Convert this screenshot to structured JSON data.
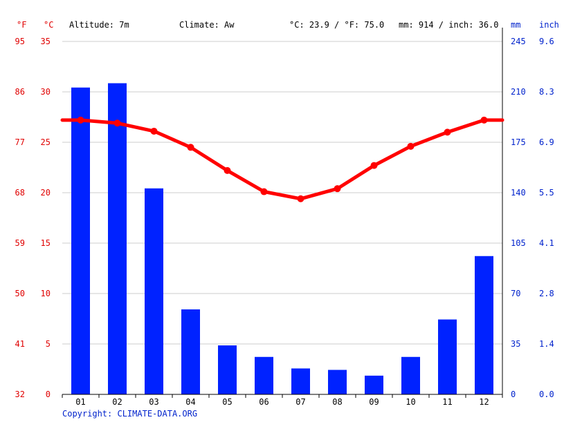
{
  "header": {
    "unit_f": "°F",
    "unit_c": "°C",
    "altitude": "Altitude: 7m",
    "climate": "Climate: Aw",
    "temp_summary": "°C: 23.9 / °F: 75.0",
    "precip_summary": "mm: 914 / inch: 36.0",
    "unit_mm": "mm",
    "unit_inch": "inch"
  },
  "copyright": "Copyright: CLIMATE-DATA.ORG",
  "colors": {
    "temperature": "#ff0000",
    "precipitation": "#0022ff",
    "temp_axis": "#e00000",
    "precip_axis": "#0022cc",
    "grid": "#cccccc"
  },
  "chart_data": {
    "type": "bar",
    "categories": [
      "01",
      "02",
      "03",
      "04",
      "05",
      "06",
      "07",
      "08",
      "09",
      "10",
      "11",
      "12"
    ],
    "axes": {
      "temp_c": {
        "ylim": [
          0,
          35
        ],
        "ticks": [
          "0",
          "5",
          "10",
          "15",
          "20",
          "25",
          "30",
          "35"
        ]
      },
      "temp_f": {
        "ticks": [
          "32",
          "41",
          "50",
          "59",
          "68",
          "77",
          "86",
          "95"
        ]
      },
      "precip_mm": {
        "ylim": [
          0,
          245
        ],
        "ticks": [
          "0",
          "35",
          "70",
          "105",
          "140",
          "175",
          "210",
          "245"
        ]
      },
      "precip_inch": {
        "ticks": [
          "0.0",
          "1.4",
          "2.8",
          "4.1",
          "5.5",
          "6.9",
          "8.3",
          "9.6"
        ]
      }
    },
    "grid": true,
    "series": [
      {
        "type": "bar",
        "axis": "precip_mm",
        "values": [
          213,
          216,
          143,
          59,
          34,
          26,
          18,
          17,
          13,
          26,
          52,
          96
        ]
      },
      {
        "type": "line",
        "axis": "temp_c",
        "values": [
          27.2,
          26.9,
          26.1,
          24.5,
          22.2,
          20.1,
          19.4,
          20.4,
          22.7,
          24.6,
          26.0,
          27.2
        ]
      }
    ]
  }
}
